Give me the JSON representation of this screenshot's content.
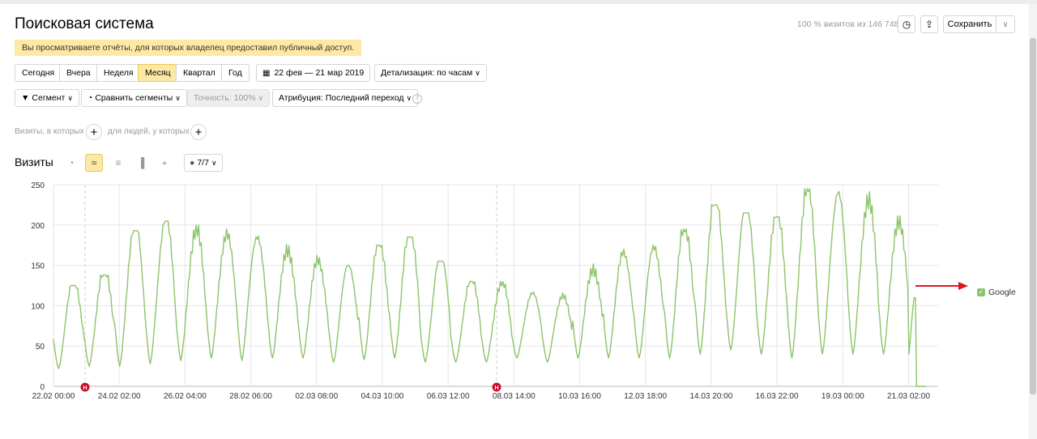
{
  "header": {
    "title": "Поисковая система",
    "visits_pct": "100 % визитов из 146 748",
    "save_label": "Сохранить"
  },
  "notice": "Вы просматриваете отчёты, для которых владелец предоставил публичный доступ.",
  "periods": [
    "Сегодня",
    "Вчера",
    "Неделя",
    "Месяц",
    "Квартал",
    "Год"
  ],
  "active_period": "Месяц",
  "date_range": "22 фев — 21 мар 2019",
  "detail": "Детализация: по часам",
  "filters": {
    "segment": "Сегмент",
    "compare": "Сравнить сегменты",
    "accuracy": "Точность: 100%",
    "attribution": "Атрибуция: Последний переход"
  },
  "conditions": {
    "visits": "Визиты, в которых",
    "people": "для людей, у которых"
  },
  "section": {
    "title": "Визиты",
    "metrics": "7/7"
  },
  "chart_data": {
    "type": "line",
    "ylim": [
      0,
      250
    ],
    "y_ticks": [
      "0",
      "50",
      "100",
      "150",
      "200",
      "250"
    ],
    "x_tick_labels": [
      "22.02 00:00",
      "24.02 02:00",
      "26.02 04:00",
      "28.02 06:00",
      "02.03 08:00",
      "04.03 10:00",
      "06.03 12:00",
      "08.03 14:00",
      "10.03 16:00",
      "12.03 18:00",
      "14.03 20:00",
      "16.03 22:00",
      "19.03 00:00",
      "21.03 02:00"
    ],
    "legend": "Google",
    "color": "#8dc36b",
    "holiday_marker": "Н",
    "series": [
      {
        "name": "Google",
        "daily": [
          {
            "min": 22,
            "max": 125
          },
          {
            "min": 25,
            "max": 138
          },
          {
            "min": 25,
            "max": 193
          },
          {
            "min": 28,
            "max": 205
          },
          {
            "min": 32,
            "max": 200
          },
          {
            "min": 35,
            "max": 200
          },
          {
            "min": 32,
            "max": 200
          },
          {
            "min": 35,
            "max": 180
          },
          {
            "min": 35,
            "max": 162
          },
          {
            "min": 30,
            "max": 150
          },
          {
            "min": 33,
            "max": 175
          },
          {
            "min": 35,
            "max": 185
          },
          {
            "min": 30,
            "max": 155
          },
          {
            "min": 30,
            "max": 130
          },
          {
            "min": 30,
            "max": 130
          },
          {
            "min": 35,
            "max": 120
          },
          {
            "min": 30,
            "max": 120
          },
          {
            "min": 35,
            "max": 155
          },
          {
            "min": 35,
            "max": 175
          },
          {
            "min": 35,
            "max": 175
          },
          {
            "min": 35,
            "max": 195
          },
          {
            "min": 40,
            "max": 225
          },
          {
            "min": 45,
            "max": 215
          },
          {
            "min": 40,
            "max": 210
          },
          {
            "min": 35,
            "max": 245
          },
          {
            "min": 40,
            "max": 245
          },
          {
            "min": 40,
            "max": 245
          },
          {
            "min": 40,
            "max": 220
          }
        ],
        "end": [
          115,
          0
        ]
      }
    ]
  }
}
